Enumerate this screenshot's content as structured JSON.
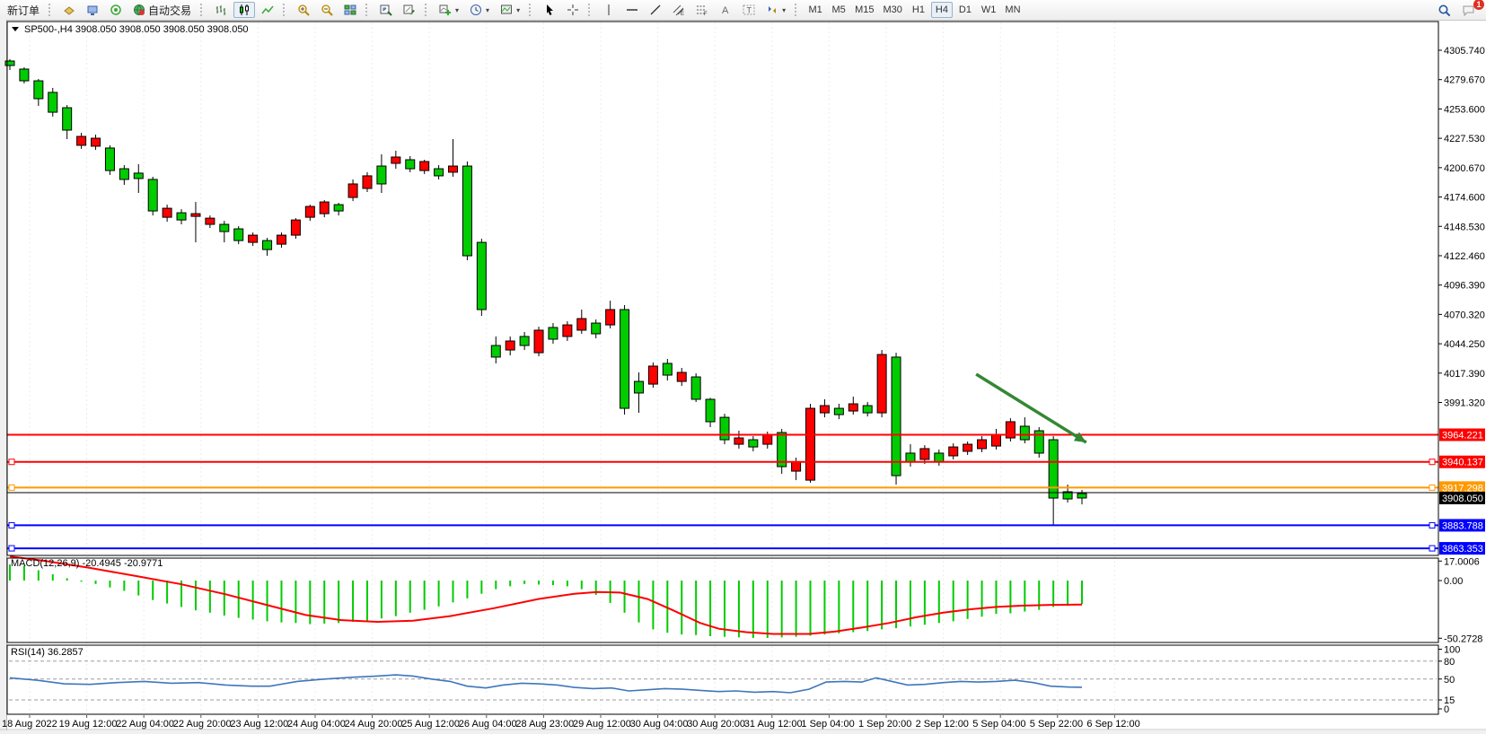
{
  "toolbar": {
    "new_order_label": "新订单",
    "auto_trading_label": "自动交易",
    "timeframes": [
      "M1",
      "M5",
      "M15",
      "M30",
      "H1",
      "H4",
      "D1",
      "W1",
      "MN"
    ],
    "active_timeframe": "H4",
    "notification_count": "1",
    "groups": [
      {
        "items": [
          {
            "name": "new-order-button",
            "label": "新订单"
          }
        ]
      },
      {
        "items": [
          {
            "name": "order-window-button",
            "icon": "order"
          },
          {
            "name": "terminal-button",
            "icon": "terminal"
          },
          {
            "name": "signal-button",
            "icon": "signal"
          },
          {
            "name": "auto-trading-button",
            "icon": "autotrade",
            "label": "自动交易"
          }
        ]
      },
      {
        "items": [
          {
            "name": "bar-chart-button",
            "icon": "barchart"
          },
          {
            "name": "candlestick-button",
            "icon": "candle",
            "active": true
          },
          {
            "name": "line-chart-button",
            "icon": "linechart"
          }
        ]
      },
      {
        "items": [
          {
            "name": "zoom-in-button",
            "icon": "zoomin"
          },
          {
            "name": "zoom-out-button",
            "icon": "zoomout"
          },
          {
            "name": "tile-windows-button",
            "icon": "tiles"
          }
        ]
      },
      {
        "items": [
          {
            "name": "arrange-windows-button",
            "icon": "arrange1"
          },
          {
            "name": "track-chart-button",
            "icon": "arrange2"
          }
        ]
      },
      {
        "items": [
          {
            "name": "new-chart-button",
            "icon": "newchart",
            "dropdown": true
          },
          {
            "name": "period-button",
            "icon": "clock",
            "dropdown": true
          },
          {
            "name": "template-button",
            "icon": "template",
            "dropdown": true
          }
        ]
      },
      {
        "items": [
          {
            "name": "cursor-button",
            "icon": "cursor"
          },
          {
            "name": "crosshair-button",
            "icon": "crosshair"
          }
        ]
      },
      {
        "items": [
          {
            "name": "vertical-line-button",
            "icon": "vline"
          },
          {
            "name": "horizontal-line-button",
            "icon": "hline"
          },
          {
            "name": "trendline-button",
            "icon": "trend"
          },
          {
            "name": "channel-button",
            "icon": "channel"
          },
          {
            "name": "fibonacci-button",
            "icon": "fibo"
          },
          {
            "name": "text-button",
            "icon": "textA"
          },
          {
            "name": "text-label-button",
            "icon": "labelT"
          },
          {
            "name": "shapes-button",
            "icon": "shapes",
            "dropdown": true
          }
        ]
      },
      {
        "items": [],
        "timeframes": true
      }
    ],
    "right_items": [
      {
        "name": "search-button",
        "icon": "search"
      },
      {
        "name": "notifications-button",
        "icon": "chat",
        "badge": "1"
      }
    ]
  },
  "chart": {
    "title_line": "SP500-,H4  3908.050 3908.050 3908.050 3908.050",
    "symbol": "SP500-",
    "timeframe": "H4",
    "macd_label_line": "MACD(12,26,9) -20.4945 -20.9771",
    "rsi_label_line": "RSI(14) 36.2857"
  },
  "chart_data": {
    "type": "candlestick",
    "symbol": "SP500-",
    "period": "H4",
    "up_color": "#FF0000",
    "down_color": "#00CC00",
    "wick_color": "#000000",
    "price_axis": {
      "ticks": [
        "4305.740",
        "4279.670",
        "4253.600",
        "4227.530",
        "4200.670",
        "4174.600",
        "4148.530",
        "4122.460",
        "4096.390",
        "4070.320",
        "4044.250",
        "4017.390",
        "3991.320"
      ],
      "step": 26.07
    },
    "time_labels": [
      "18 Aug 2022",
      "19 Aug 12:00",
      "22 Aug 04:00",
      "22 Aug 20:00",
      "23 Aug 12:00",
      "24 Aug 04:00",
      "24 Aug 20:00",
      "25 Aug 12:00",
      "26 Aug 04:00",
      "28 Aug 23:00",
      "29 Aug 12:00",
      "30 Aug 04:00",
      "30 Aug 20:00",
      "31 Aug 12:00",
      "1 Sep 04:00",
      "1 Sep 20:00",
      "2 Sep 12:00",
      "5 Sep 04:00",
      "5 Sep 22:00",
      "6 Sep 12:00"
    ],
    "candles": [
      [
        4296.2,
        4297.8,
        4288.2,
        4292.2
      ],
      [
        4289.0,
        4290.6,
        4276.3,
        4278.6
      ],
      [
        4278.6,
        4280.2,
        4256.3,
        4262.7
      ],
      [
        4268.3,
        4272.3,
        4246.8,
        4250.7
      ],
      [
        4254.7,
        4257.1,
        4226.8,
        4234.8
      ],
      [
        4221.3,
        4232.4,
        4218.1,
        4229.2
      ],
      [
        4220.5,
        4230.8,
        4217.3,
        4227.6
      ],
      [
        4218.9,
        4221.3,
        4195.0,
        4198.9
      ],
      [
        4200.5,
        4203.7,
        4186.2,
        4191.0
      ],
      [
        4196.6,
        4204.5,
        4179.0,
        4191.8
      ],
      [
        4191.0,
        4193.4,
        4159.0,
        4163.0
      ],
      [
        4157.4,
        4168.6,
        4153.4,
        4165.4
      ],
      [
        4161.4,
        4164.6,
        4151.1,
        4155.0
      ],
      [
        4158.2,
        4171.0,
        4135.1,
        4160.6
      ],
      [
        4151.1,
        4159.0,
        4147.9,
        4156.6
      ],
      [
        4151.1,
        4154.2,
        4135.1,
        4144.7
      ],
      [
        4147.1,
        4149.5,
        4133.5,
        4136.7
      ],
      [
        4135.1,
        4143.9,
        4131.9,
        4141.5
      ],
      [
        4136.7,
        4139.1,
        4123.2,
        4128.7
      ],
      [
        4133.5,
        4143.9,
        4130.3,
        4141.5
      ],
      [
        4141.5,
        4156.6,
        4138.3,
        4155.0
      ],
      [
        4157.4,
        4168.6,
        4154.2,
        4167.0
      ],
      [
        4160.6,
        4172.6,
        4157.4,
        4171.0
      ],
      [
        4168.6,
        4170.2,
        4159.0,
        4163.0
      ],
      [
        4175.0,
        4191.0,
        4171.8,
        4187.0
      ],
      [
        4183.0,
        4197.4,
        4179.8,
        4194.2
      ],
      [
        4202.9,
        4213.3,
        4179.0,
        4187.0
      ],
      [
        4205.3,
        4216.5,
        4200.5,
        4210.9
      ],
      [
        4208.5,
        4211.7,
        4197.4,
        4200.5
      ],
      [
        4198.9,
        4208.5,
        4195.8,
        4206.9
      ],
      [
        4200.5,
        4203.7,
        4191.0,
        4194.2
      ],
      [
        4197.4,
        4226.8,
        4193.4,
        4202.9
      ],
      [
        4202.9,
        4206.9,
        4119.2,
        4123.2
      ],
      [
        4135.1,
        4138.3,
        4069.8,
        4075.4
      ],
      [
        4043.5,
        4051.5,
        4027.6,
        4033.2
      ],
      [
        4039.5,
        4051.5,
        4034.7,
        4047.5
      ],
      [
        4051.5,
        4055.5,
        4039.5,
        4043.5
      ],
      [
        4037.1,
        4060.2,
        4033.9,
        4057.1
      ],
      [
        4059.5,
        4063.4,
        4045.1,
        4049.1
      ],
      [
        4051.5,
        4065.0,
        4047.5,
        4061.8
      ],
      [
        4057.1,
        4075.4,
        4053.9,
        4067.4
      ],
      [
        4063.4,
        4066.6,
        4049.9,
        4053.9
      ],
      [
        4061.8,
        4083.3,
        4058.7,
        4075.4
      ],
      [
        4075.4,
        4079.4,
        3982.1,
        3987.7
      ],
      [
        4011.6,
        4019.6,
        3983.7,
        4001.3
      ],
      [
        4009.2,
        4028.4,
        4006.0,
        4025.2
      ],
      [
        4027.6,
        4031.6,
        4012.4,
        4017.2
      ],
      [
        4011.6,
        4023.6,
        4007.6,
        4019.6
      ],
      [
        4015.6,
        4018.8,
        3993.3,
        3995.7
      ],
      [
        3995.7,
        3997.0,
        3971.0,
        3975.8
      ],
      [
        3979.7,
        3982.9,
        3955.8,
        3959.8
      ],
      [
        3955.8,
        3967.8,
        3951.9,
        3961.4
      ],
      [
        3959.8,
        3963.0,
        3949.5,
        3953.4
      ],
      [
        3955.8,
        3967.0,
        3951.9,
        3963.8
      ],
      [
        3966.2,
        3969.4,
        3929.5,
        3935.9
      ],
      [
        3931.9,
        3943.9,
        3923.9,
        3939.9
      ],
      [
        3923.9,
        3991.7,
        3921.6,
        3987.7
      ],
      [
        3983.7,
        3995.7,
        3979.7,
        3990.1
      ],
      [
        3987.7,
        3991.7,
        3978.1,
        3982.1
      ],
      [
        3985.3,
        3998.1,
        3982.1,
        3991.7
      ],
      [
        3990.1,
        3993.3,
        3980.5,
        3983.7
      ],
      [
        3983.7,
        4039.5,
        3979.7,
        4035.5
      ],
      [
        4033.2,
        4037.1,
        3920.0,
        3927.9
      ],
      [
        3947.9,
        3955.8,
        3935.9,
        3939.9
      ],
      [
        3942.3,
        3955.0,
        3938.3,
        3951.9
      ],
      [
        3947.9,
        3951.1,
        3936.7,
        3939.9
      ],
      [
        3945.5,
        3956.6,
        3942.3,
        3953.4
      ],
      [
        3949.5,
        3958.2,
        3946.3,
        3955.8
      ],
      [
        3951.9,
        3963.0,
        3948.7,
        3959.8
      ],
      [
        3954.2,
        3969.4,
        3951.1,
        3963.8
      ],
      [
        3961.4,
        3978.9,
        3958.2,
        3975.8
      ],
      [
        3971.8,
        3979.7,
        3956.6,
        3959.8
      ],
      [
        3967.8,
        3971.0,
        3943.9,
        3947.9
      ],
      [
        3959.8,
        3963.0,
        3884.5,
        3908.0
      ],
      [
        3913.6,
        3920.0,
        3904.0,
        3907.2
      ],
      [
        3912.0,
        3915.2,
        3902.4,
        3908.05
      ]
    ],
    "hlines": [
      {
        "price": 3964.221,
        "label": "3964.221",
        "color": "#FF0000",
        "width": 2,
        "handles": false
      },
      {
        "price": 3940.137,
        "label": "3940.137",
        "color": "#FF0000",
        "width": 2,
        "handles": true
      },
      {
        "price": 3917.298,
        "label": "3917.298",
        "color": "#FF9900",
        "width": 2,
        "handles": true
      },
      {
        "price": 3912.8,
        "label": null,
        "color": "#000000",
        "width": 1,
        "handles": false
      },
      {
        "price": 3883.788,
        "label": "3883.788",
        "color": "#0000FF",
        "width": 2,
        "handles": true
      },
      {
        "price": 3863.353,
        "label": "3863.353",
        "color": "#0000FF",
        "width": 2,
        "handles": true
      }
    ],
    "bid": {
      "price": 3908.05,
      "label": "3908.050",
      "bg": "#000000",
      "fg": "#FFFFFF"
    },
    "arrow": {
      "from_index": 67.6,
      "from_price": 4018.0,
      "to_index": 75.3,
      "to_price": 3957.4,
      "color": "#338833"
    },
    "macd": {
      "title": "MACD(12,26,9)",
      "macd_value": -20.4945,
      "signal_value": -20.9771,
      "axis_labels": [
        "17.0006",
        "0.00",
        "-50.2728"
      ],
      "axis_values": [
        17.0006,
        0,
        -50.2728
      ],
      "hist_color": "#00CC00",
      "signal_color": "#FF0000",
      "histogram": [
        14,
        13,
        9,
        5.5,
        2,
        -1,
        -3,
        -6,
        -9,
        -13,
        -17,
        -20,
        -23,
        -26,
        -28,
        -30.5,
        -32.5,
        -34,
        -35.5,
        -36.5,
        -37,
        -38,
        -37.5,
        -37,
        -36,
        -35,
        -33,
        -31,
        -28,
        -25.5,
        -22.5,
        -19,
        -15.5,
        -11.5,
        -7.5,
        -5,
        -3,
        -3.5,
        -4,
        -5,
        -7.5,
        -12.5,
        -19.5,
        -28,
        -36.5,
        -42.5,
        -45.5,
        -47,
        -47.5,
        -48.5,
        -49,
        -49.5,
        -50,
        -50,
        -49.5,
        -49,
        -48,
        -47,
        -46,
        -45,
        -44,
        -42.5,
        -41.5,
        -40,
        -38.5,
        -37,
        -35.5,
        -33.5,
        -31.5,
        -29,
        -28.5,
        -27,
        -25.5,
        -23,
        -22,
        -20.5
      ],
      "signal_points": [
        [
          0,
          21
        ],
        [
          2.5,
          17
        ],
        [
          5.6,
          11
        ],
        [
          8.8,
          4
        ],
        [
          11.9,
          -3
        ],
        [
          15.1,
          -12
        ],
        [
          18.2,
          -22
        ],
        [
          20.7,
          -30
        ],
        [
          23.2,
          -34.5
        ],
        [
          25.7,
          -36
        ],
        [
          28.2,
          -35
        ],
        [
          30.8,
          -31
        ],
        [
          33.9,
          -24
        ],
        [
          37,
          -16
        ],
        [
          39.5,
          -11.5
        ],
        [
          41.1,
          -10
        ],
        [
          42.7,
          -10.5
        ],
        [
          44.6,
          -16
        ],
        [
          46.4,
          -26
        ],
        [
          48.3,
          -37
        ],
        [
          49.6,
          -42
        ],
        [
          51.5,
          -45
        ],
        [
          53.4,
          -46.5
        ],
        [
          55.9,
          -46.5
        ],
        [
          57.7,
          -44.5
        ],
        [
          59.6,
          -41
        ],
        [
          61.5,
          -37
        ],
        [
          63.4,
          -32
        ],
        [
          65.3,
          -28
        ],
        [
          67.2,
          -25
        ],
        [
          69,
          -23
        ],
        [
          70.9,
          -21.8
        ],
        [
          72.8,
          -21.2
        ],
        [
          75,
          -20.98
        ]
      ]
    },
    "rsi": {
      "title": "RSI(14)",
      "value": 36.2857,
      "axis_labels": [
        "100",
        "80",
        "50",
        "15",
        "0"
      ],
      "axis_values": [
        100,
        80,
        50,
        15,
        0
      ],
      "dashed_levels": [
        80,
        50,
        15
      ],
      "color": "#3E76BC",
      "points": [
        [
          0,
          52
        ],
        [
          1.9,
          48
        ],
        [
          3.8,
          42
        ],
        [
          5.6,
          41
        ],
        [
          7.5,
          44
        ],
        [
          9.4,
          46
        ],
        [
          11.3,
          43
        ],
        [
          13.2,
          44
        ],
        [
          15.1,
          40
        ],
        [
          16.9,
          38
        ],
        [
          18.2,
          38
        ],
        [
          20.1,
          46
        ],
        [
          22,
          50
        ],
        [
          23.9,
          53
        ],
        [
          25.7,
          55
        ],
        [
          27,
          57
        ],
        [
          28.2,
          55
        ],
        [
          29.5,
          50
        ],
        [
          30.8,
          46
        ],
        [
          32,
          38
        ],
        [
          33.3,
          35
        ],
        [
          34.5,
          40
        ],
        [
          35.8,
          43
        ],
        [
          37,
          42
        ],
        [
          38.3,
          40
        ],
        [
          39.5,
          36
        ],
        [
          40.8,
          34
        ],
        [
          42.1,
          35
        ],
        [
          43.3,
          30
        ],
        [
          44.6,
          32
        ],
        [
          45.8,
          34
        ],
        [
          47.1,
          33
        ],
        [
          48.3,
          31
        ],
        [
          49.6,
          29
        ],
        [
          50.8,
          30
        ],
        [
          52.1,
          28
        ],
        [
          53.4,
          29
        ],
        [
          54.6,
          27
        ],
        [
          55.9,
          33
        ],
        [
          57.1,
          45
        ],
        [
          58.4,
          46
        ],
        [
          59.6,
          45
        ],
        [
          60.6,
          52
        ],
        [
          61.5,
          47
        ],
        [
          62.8,
          40
        ],
        [
          64,
          41
        ],
        [
          65.3,
          44
        ],
        [
          66.5,
          46
        ],
        [
          67.8,
          45
        ],
        [
          69,
          46
        ],
        [
          70.3,
          48
        ],
        [
          71.6,
          44
        ],
        [
          72.8,
          38
        ],
        [
          74.1,
          36.5
        ],
        [
          75,
          36.29
        ]
      ]
    }
  }
}
